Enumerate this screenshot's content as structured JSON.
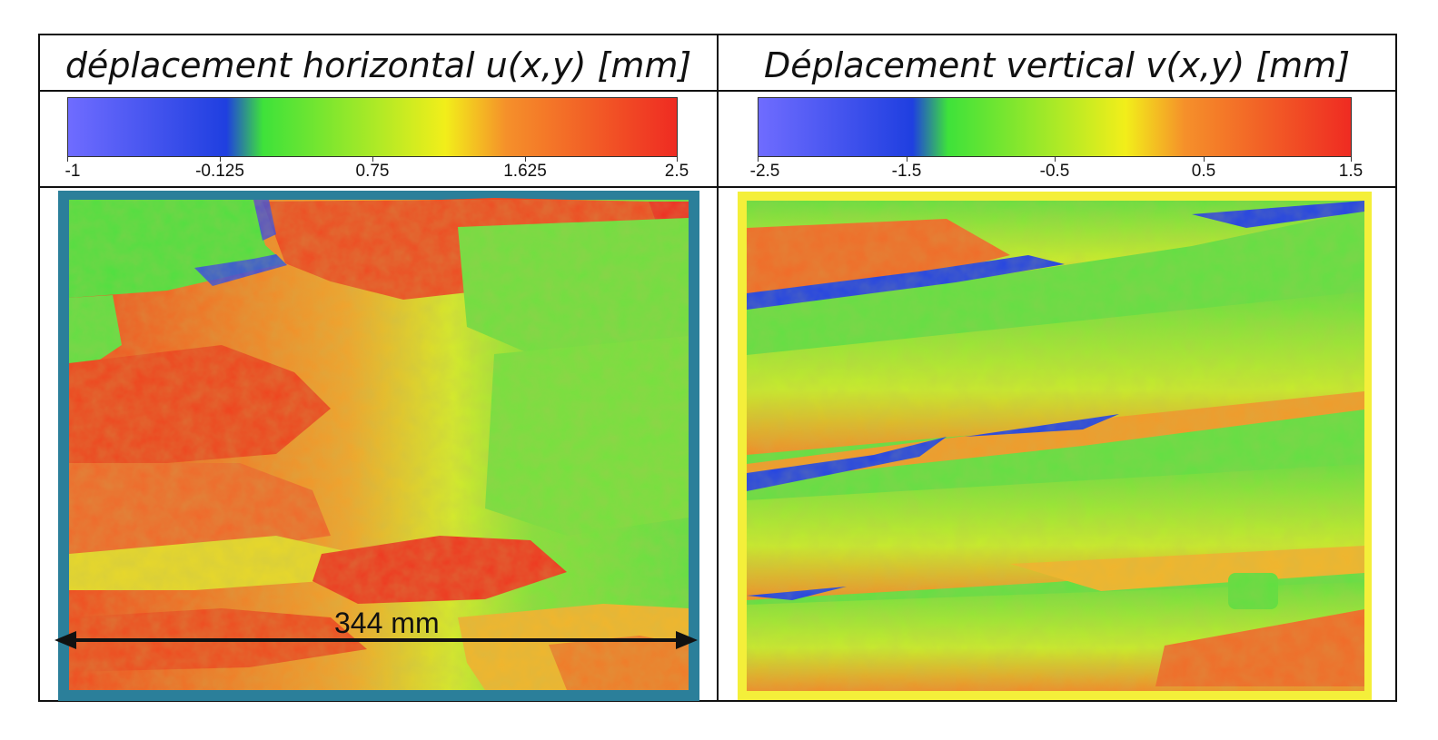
{
  "panels": [
    {
      "title": "déplacement horizontal u(x,y) [mm]",
      "colorbar": {
        "ticks": [
          "-1",
          "-0.125",
          "0.75",
          "1.625",
          "2.5"
        ],
        "colors": [
          "#6f6cff",
          "#1f3fe0",
          "#3ee23a",
          "#f2ee1a",
          "#f5902a",
          "#ef2b22"
        ]
      },
      "border_color": "#2b7f9a"
    },
    {
      "title": "Déplacement vertical v(x,y) [mm]",
      "colorbar": {
        "ticks": [
          "-2.5",
          "-1.5",
          "-0.5",
          "0.5",
          "1.5"
        ],
        "colors": [
          "#6f6cff",
          "#1f3fe0",
          "#3ee23a",
          "#f2ee1a",
          "#f5902a",
          "#ef2b22"
        ]
      },
      "border_color": "#f4ef3a"
    }
  ],
  "dimension_label": "344 mm"
}
